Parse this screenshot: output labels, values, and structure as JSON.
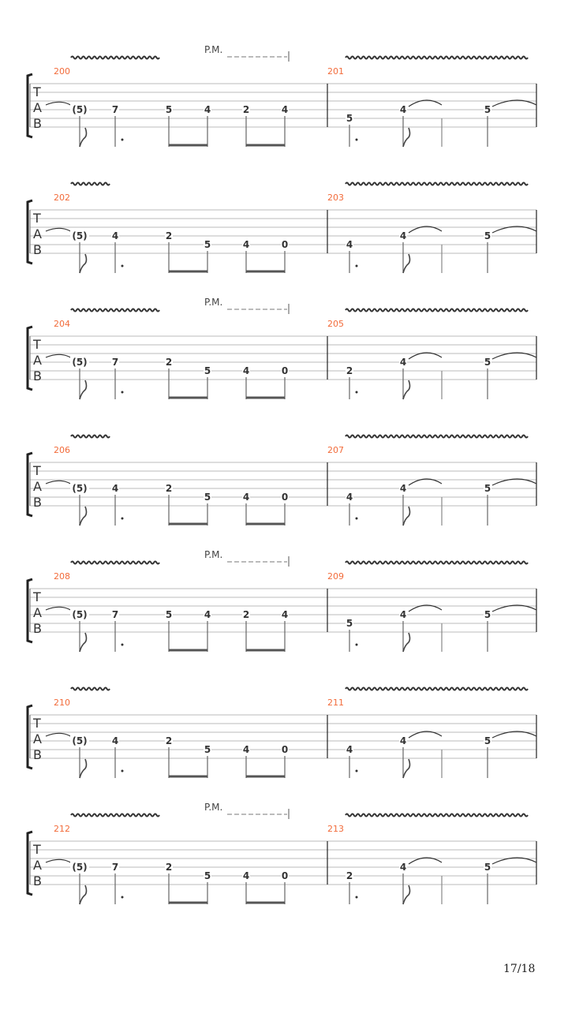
{
  "colors": {
    "measure_number": "#f26b3a",
    "staff": "#bbbbbb",
    "notes": "#333333"
  },
  "tab_clef": [
    "T",
    "A",
    "B"
  ],
  "palm_mute_label": "P.M.",
  "systems": [
    {
      "measures": [
        {
          "number": "200",
          "notes": [
            {
              "fret": "(5)",
              "string": 4
            },
            {
              "fret": "7",
              "string": 4
            },
            {
              "fret": "5",
              "string": 4
            },
            {
              "fret": "4",
              "string": 4
            },
            {
              "fret": "2",
              "string": 4
            },
            {
              "fret": "4",
              "string": 4
            }
          ]
        },
        {
          "number": "201",
          "notes": [
            {
              "fret": "5",
              "string": 5
            },
            {
              "fret": "4",
              "string": 4
            },
            {
              "fret": "5",
              "string": 4
            }
          ]
        }
      ],
      "palm_mute": true
    },
    {
      "measures": [
        {
          "number": "202",
          "notes": [
            {
              "fret": "(5)",
              "string": 4
            },
            {
              "fret": "4",
              "string": 4
            },
            {
              "fret": "2",
              "string": 4
            },
            {
              "fret": "5",
              "string": 5
            },
            {
              "fret": "4",
              "string": 5
            },
            {
              "fret": "0",
              "string": 5
            }
          ]
        },
        {
          "number": "203",
          "notes": [
            {
              "fret": "4",
              "string": 5
            },
            {
              "fret": "4",
              "string": 4
            },
            {
              "fret": "5",
              "string": 4
            }
          ]
        }
      ],
      "palm_mute": false
    },
    {
      "measures": [
        {
          "number": "204",
          "notes": [
            {
              "fret": "(5)",
              "string": 4
            },
            {
              "fret": "7",
              "string": 4
            },
            {
              "fret": "2",
              "string": 4
            },
            {
              "fret": "5",
              "string": 5
            },
            {
              "fret": "4",
              "string": 5
            },
            {
              "fret": "0",
              "string": 5
            }
          ]
        },
        {
          "number": "205",
          "notes": [
            {
              "fret": "2",
              "string": 5
            },
            {
              "fret": "4",
              "string": 4
            },
            {
              "fret": "5",
              "string": 4
            }
          ]
        }
      ],
      "palm_mute": true
    },
    {
      "measures": [
        {
          "number": "206",
          "notes": [
            {
              "fret": "(5)",
              "string": 4
            },
            {
              "fret": "4",
              "string": 4
            },
            {
              "fret": "2",
              "string": 4
            },
            {
              "fret": "5",
              "string": 5
            },
            {
              "fret": "4",
              "string": 5
            },
            {
              "fret": "0",
              "string": 5
            }
          ]
        },
        {
          "number": "207",
          "notes": [
            {
              "fret": "4",
              "string": 5
            },
            {
              "fret": "4",
              "string": 4
            },
            {
              "fret": "5",
              "string": 4
            }
          ]
        }
      ],
      "palm_mute": false
    },
    {
      "measures": [
        {
          "number": "208",
          "notes": [
            {
              "fret": "(5)",
              "string": 4
            },
            {
              "fret": "7",
              "string": 4
            },
            {
              "fret": "5",
              "string": 4
            },
            {
              "fret": "4",
              "string": 4
            },
            {
              "fret": "2",
              "string": 4
            },
            {
              "fret": "4",
              "string": 4
            }
          ]
        },
        {
          "number": "209",
          "notes": [
            {
              "fret": "5",
              "string": 5
            },
            {
              "fret": "4",
              "string": 4
            },
            {
              "fret": "5",
              "string": 4
            }
          ]
        }
      ],
      "palm_mute": true
    },
    {
      "measures": [
        {
          "number": "210",
          "notes": [
            {
              "fret": "(5)",
              "string": 4
            },
            {
              "fret": "4",
              "string": 4
            },
            {
              "fret": "2",
              "string": 4
            },
            {
              "fret": "5",
              "string": 5
            },
            {
              "fret": "4",
              "string": 5
            },
            {
              "fret": "0",
              "string": 5
            }
          ]
        },
        {
          "number": "211",
          "notes": [
            {
              "fret": "4",
              "string": 5
            },
            {
              "fret": "4",
              "string": 4
            },
            {
              "fret": "5",
              "string": 4
            }
          ]
        }
      ],
      "palm_mute": false
    },
    {
      "measures": [
        {
          "number": "212",
          "notes": [
            {
              "fret": "(5)",
              "string": 4
            },
            {
              "fret": "7",
              "string": 4
            },
            {
              "fret": "2",
              "string": 4
            },
            {
              "fret": "5",
              "string": 5
            },
            {
              "fret": "4",
              "string": 5
            },
            {
              "fret": "0",
              "string": 5
            }
          ]
        },
        {
          "number": "213",
          "notes": [
            {
              "fret": "2",
              "string": 5
            },
            {
              "fret": "4",
              "string": 4
            },
            {
              "fret": "5",
              "string": 4
            }
          ]
        }
      ],
      "palm_mute": true
    }
  ],
  "page_number": "17/18"
}
